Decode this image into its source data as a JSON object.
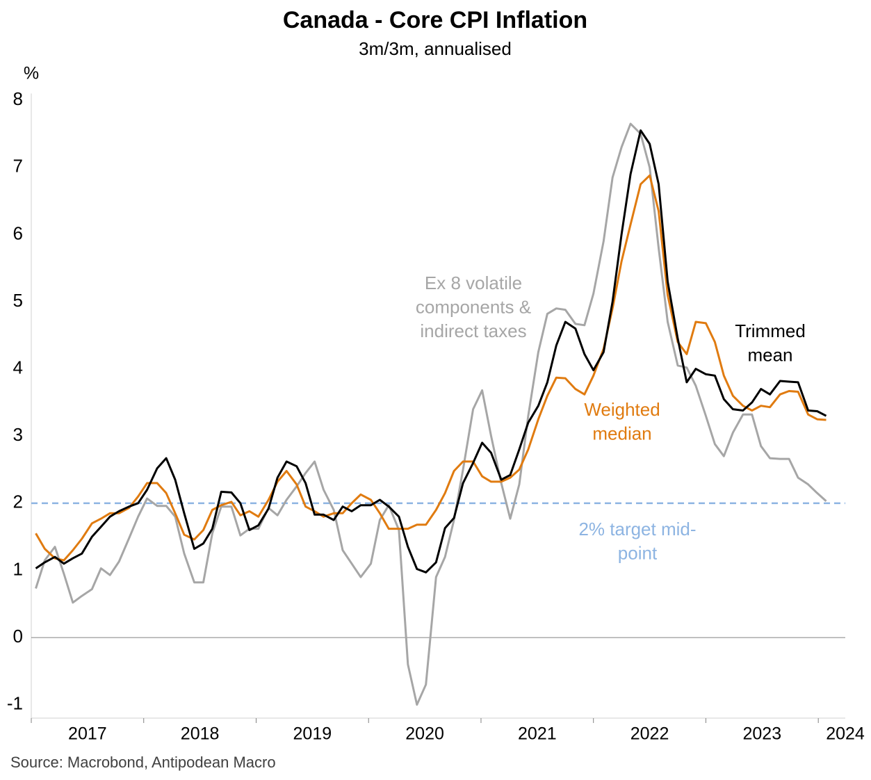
{
  "chart_data": {
    "type": "line",
    "title": "Canada - Core CPI Inflation",
    "subtitle": "3m/3m, annualised",
    "y_label": "%",
    "source": "Source: Macrobond, Antipodean Macro",
    "x": [
      2017.04,
      2017.12,
      2017.21,
      2017.29,
      2017.37,
      2017.45,
      2017.54,
      2017.62,
      2017.7,
      2017.78,
      2017.87,
      2017.95,
      2018.03,
      2018.12,
      2018.2,
      2018.28,
      2018.36,
      2018.45,
      2018.53,
      2018.61,
      2018.69,
      2018.78,
      2018.86,
      2018.94,
      2019.02,
      2019.11,
      2019.19,
      2019.27,
      2019.36,
      2019.44,
      2019.52,
      2019.6,
      2019.69,
      2019.77,
      2019.85,
      2019.93,
      2020.02,
      2020.1,
      2020.18,
      2020.27,
      2020.35,
      2020.43,
      2020.51,
      2020.6,
      2020.68,
      2020.76,
      2020.84,
      2020.93,
      2021.01,
      2021.09,
      2021.18,
      2021.26,
      2021.34,
      2021.42,
      2021.51,
      2021.59,
      2021.67,
      2021.75,
      2021.84,
      2021.92,
      2022.0,
      2022.09,
      2022.17,
      2022.25,
      2022.33,
      2022.42,
      2022.5,
      2022.58,
      2022.66,
      2022.75,
      2022.83,
      2022.91,
      2023.0,
      2023.08,
      2023.16,
      2023.24,
      2023.33,
      2023.41,
      2023.49,
      2023.57,
      2023.66,
      2023.74,
      2023.82,
      2023.91,
      2023.99,
      2024.07
    ],
    "series": [
      {
        "name": "Ex 8 volatile components & indirect taxes",
        "color": "#a6a6a6",
        "values": [
          0.73,
          1.15,
          1.35,
          0.95,
          0.52,
          0.62,
          0.72,
          1.03,
          0.93,
          1.13,
          1.48,
          1.8,
          2.07,
          1.96,
          1.96,
          1.8,
          1.25,
          0.82,
          0.82,
          1.55,
          1.95,
          1.95,
          1.52,
          1.62,
          1.62,
          1.93,
          1.82,
          2.05,
          2.25,
          2.45,
          2.62,
          2.2,
          1.9,
          1.3,
          1.1,
          0.9,
          1.1,
          1.75,
          1.97,
          1.6,
          -0.4,
          -1.0,
          -0.7,
          0.9,
          1.2,
          1.75,
          2.5,
          3.4,
          3.68,
          3.0,
          2.3,
          1.77,
          2.28,
          3.3,
          4.25,
          4.82,
          4.9,
          4.88,
          4.67,
          4.65,
          5.12,
          5.9,
          6.85,
          7.3,
          7.65,
          7.5,
          7.0,
          5.8,
          4.7,
          4.05,
          4.02,
          3.75,
          3.3,
          2.88,
          2.7,
          3.05,
          3.32,
          3.32,
          2.85,
          2.67,
          2.66,
          2.66,
          2.38,
          2.28,
          2.15,
          2.03
        ]
      },
      {
        "name": "Weighted median",
        "color": "#e07b10",
        "values": [
          1.55,
          1.32,
          1.18,
          1.15,
          1.3,
          1.47,
          1.7,
          1.77,
          1.85,
          1.85,
          1.93,
          2.1,
          2.3,
          2.3,
          2.15,
          1.85,
          1.53,
          1.46,
          1.6,
          1.9,
          1.97,
          2.02,
          1.82,
          1.88,
          1.8,
          2.05,
          2.32,
          2.48,
          2.28,
          1.95,
          1.88,
          1.8,
          1.85,
          1.85,
          2.0,
          2.13,
          2.05,
          1.85,
          1.62,
          1.62,
          1.62,
          1.68,
          1.68,
          1.9,
          2.15,
          2.48,
          2.62,
          2.62,
          2.4,
          2.32,
          2.32,
          2.38,
          2.5,
          2.8,
          3.25,
          3.6,
          3.87,
          3.86,
          3.7,
          3.62,
          3.9,
          4.3,
          4.9,
          5.6,
          6.15,
          6.75,
          6.88,
          6.35,
          5.1,
          4.4,
          4.22,
          4.7,
          4.68,
          4.4,
          3.9,
          3.6,
          3.45,
          3.38,
          3.45,
          3.43,
          3.62,
          3.67,
          3.66,
          3.32,
          3.25,
          3.24
        ]
      },
      {
        "name": "Trimmed mean",
        "color": "#000000",
        "values": [
          1.03,
          1.12,
          1.2,
          1.1,
          1.18,
          1.25,
          1.5,
          1.65,
          1.8,
          1.88,
          1.95,
          2.0,
          2.2,
          2.52,
          2.67,
          2.35,
          1.85,
          1.32,
          1.4,
          1.62,
          2.17,
          2.16,
          2.0,
          1.6,
          1.67,
          1.92,
          2.38,
          2.62,
          2.55,
          2.3,
          1.83,
          1.83,
          1.75,
          1.95,
          1.88,
          1.97,
          1.97,
          2.05,
          1.95,
          1.8,
          1.35,
          1.02,
          0.97,
          1.12,
          1.63,
          1.78,
          2.3,
          2.6,
          2.9,
          2.75,
          2.35,
          2.42,
          2.8,
          3.2,
          3.45,
          3.8,
          4.35,
          4.7,
          4.6,
          4.22,
          3.98,
          4.25,
          5.0,
          6.0,
          6.9,
          7.55,
          7.35,
          6.75,
          5.3,
          4.45,
          3.8,
          4.0,
          3.92,
          3.9,
          3.55,
          3.4,
          3.38,
          3.5,
          3.7,
          3.62,
          3.82,
          3.81,
          3.8,
          3.38,
          3.37,
          3.3
        ]
      }
    ],
    "annotations": [
      {
        "lines": [
          "Ex 8 volatile",
          "components &",
          "indirect taxes"
        ],
        "color": "#a6a6a6"
      },
      {
        "lines": [
          "Weighted",
          "median"
        ],
        "color": "#e07b10"
      },
      {
        "lines": [
          "Trimmed",
          "mean"
        ],
        "color": "#000000"
      },
      {
        "lines": [
          "2% target mid-",
          "point"
        ],
        "color": "#8db4e2"
      }
    ],
    "target": {
      "value": 2,
      "color": "#8db4e2"
    },
    "xlim": [
      2017,
      2024.24
    ],
    "xticks": [
      2017,
      2018,
      2019,
      2020,
      2021,
      2022,
      2023,
      2024
    ],
    "ylim": [
      -1.2,
      8.1
    ],
    "yticks": [
      -1,
      0,
      1,
      2,
      3,
      4,
      5,
      6,
      7,
      8
    ]
  }
}
